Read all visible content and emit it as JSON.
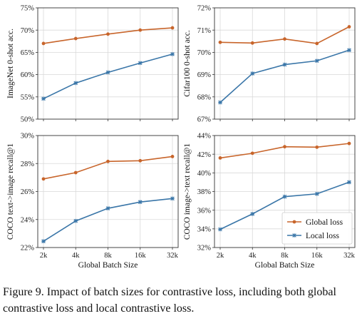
{
  "chart_data": [
    {
      "type": "line",
      "categories": [
        "2k",
        "4k",
        "8k",
        "16k",
        "32k"
      ],
      "ylabel": "ImageNet 0-shot acc.",
      "xlabel": "",
      "ylim": [
        50,
        75
      ],
      "yticks": [
        50,
        55,
        60,
        65,
        70,
        75
      ],
      "ytick_labels": [
        "50%",
        "55%",
        "60%",
        "65%",
        "70%",
        "75%"
      ],
      "series": [
        {
          "name": "Global loss",
          "color": "#c8652b",
          "values": [
            67.0,
            68.1,
            69.1,
            70.0,
            70.5
          ]
        },
        {
          "name": "Local loss",
          "color": "#3a76a8",
          "values": [
            54.6,
            58.1,
            60.5,
            62.6,
            64.6
          ]
        }
      ]
    },
    {
      "type": "line",
      "categories": [
        "2k",
        "4k",
        "8k",
        "16k",
        "32k"
      ],
      "ylabel": "Cifar100 0-shot acc.",
      "xlabel": "",
      "ylim": [
        67,
        72
      ],
      "yticks": [
        67,
        68,
        69,
        70,
        71,
        72
      ],
      "ytick_labels": [
        "67%",
        "68%",
        "69%",
        "70%",
        "71%",
        "72%"
      ],
      "series": [
        {
          "name": "Global loss",
          "color": "#c8652b",
          "values": [
            70.45,
            70.42,
            70.6,
            70.4,
            71.15
          ]
        },
        {
          "name": "Local loss",
          "color": "#3a76a8",
          "values": [
            67.75,
            69.05,
            69.45,
            69.62,
            70.1
          ]
        }
      ]
    },
    {
      "type": "line",
      "categories": [
        "2k",
        "4k",
        "8k",
        "16k",
        "32k"
      ],
      "ylabel": "COCO text->image recall@1",
      "xlabel": "Global Batch Size",
      "ylim": [
        22,
        30
      ],
      "yticks": [
        22,
        24,
        26,
        28,
        30
      ],
      "ytick_labels": [
        "22%",
        "24%",
        "26%",
        "28%",
        "30%"
      ],
      "series": [
        {
          "name": "Global loss",
          "color": "#c8652b",
          "values": [
            26.9,
            27.35,
            28.15,
            28.2,
            28.5
          ]
        },
        {
          "name": "Local loss",
          "color": "#3a76a8",
          "values": [
            22.45,
            23.9,
            24.8,
            25.25,
            25.5
          ]
        }
      ]
    },
    {
      "type": "line",
      "categories": [
        "2k",
        "4k",
        "8k",
        "16k",
        "32k"
      ],
      "ylabel": "COCO image->text recall@1",
      "xlabel": "Global Batch Size",
      "ylim": [
        32,
        44
      ],
      "yticks": [
        32,
        34,
        36,
        38,
        40,
        42,
        44
      ],
      "ytick_labels": [
        "32%",
        "34%",
        "36%",
        "38%",
        "40%",
        "42%",
        "44%"
      ],
      "legend": "lower-right",
      "series": [
        {
          "name": "Global loss",
          "color": "#c8652b",
          "values": [
            41.6,
            42.1,
            42.8,
            42.75,
            43.15
          ]
        },
        {
          "name": "Local loss",
          "color": "#3a76a8",
          "values": [
            33.95,
            35.6,
            37.45,
            37.75,
            39.0
          ]
        }
      ]
    }
  ],
  "caption": "Figure 9. Impact of batch sizes for contrastive loss, including both global contrastive loss and local contrastive loss."
}
